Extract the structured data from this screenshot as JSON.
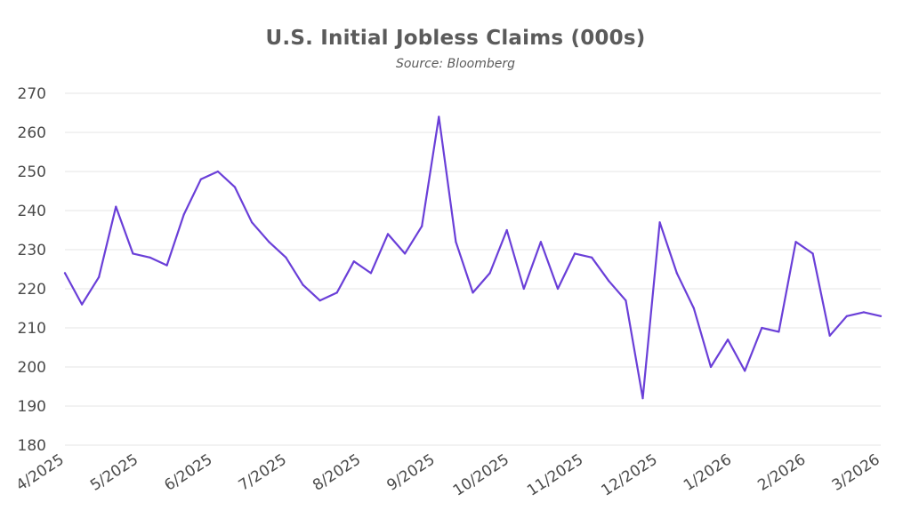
{
  "chart_data": {
    "type": "line",
    "title": "U.S. Initial Jobless Claims (000s)",
    "subtitle": "Source: Bloomberg",
    "xlabel": "",
    "ylabel": "",
    "ylim": [
      180,
      270
    ],
    "yticks": [
      180,
      190,
      200,
      210,
      220,
      230,
      240,
      250,
      260,
      270
    ],
    "xticks": [
      "4/2025",
      "5/2025",
      "6/2025",
      "7/2025",
      "8/2025",
      "9/2025",
      "10/2025",
      "11/2025",
      "12/2025",
      "1/2026",
      "2/2026",
      "3/2026"
    ],
    "grid": true,
    "legend": "none",
    "series": [
      {
        "color": "#6a3fd8",
        "values": [
          224,
          216,
          223,
          241,
          229,
          228,
          226,
          239,
          248,
          250,
          246,
          237,
          232,
          228,
          221,
          217,
          219,
          227,
          224,
          234,
          229,
          236,
          264,
          232,
          219,
          224,
          235,
          220,
          232,
          220,
          229,
          228,
          222,
          217,
          192,
          237,
          224,
          215,
          200,
          207,
          199,
          210,
          209,
          232,
          229,
          208,
          213,
          214,
          213
        ]
      }
    ]
  },
  "colors": {
    "line": "#6a3fd8",
    "grid": "#e6e6e6",
    "text": "#4a4a4a",
    "title": "#5b5b5b"
  }
}
